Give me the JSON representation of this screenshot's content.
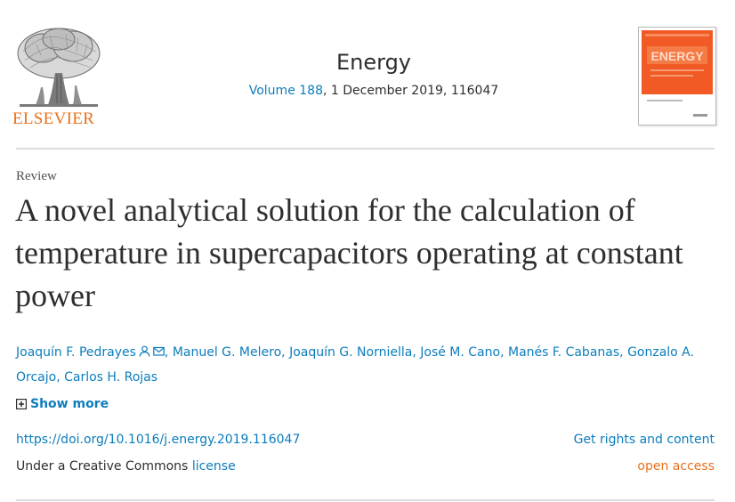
{
  "publisher": {
    "logo_text": "ELSEVIER",
    "brand_color": "#e9711c"
  },
  "journal": {
    "name": "Energy",
    "volume_link": "Volume 188",
    "issue_details": ", 1 December 2019, 116047",
    "cover_color": "#f15a24",
    "cover_wordmark": "ENERGY"
  },
  "article": {
    "type": "Review",
    "title": "A novel analytical solution for the calculation of temperature in supercapacitors operating at constant power",
    "authors": [
      "Joaquín F. Pedrayes",
      "Manuel G. Melero",
      "Joaquín G. Norniella",
      "José M. Cano",
      "Manés F. Cabanas",
      "Gonzalo A. Orcajo",
      "Carlos H. Rojas"
    ],
    "author_icons": [
      "person-icon",
      "envelope-icon"
    ],
    "show_more_label": "Show more",
    "show_more_icon": "plus-square-icon",
    "doi": "https://doi.org/10.1016/j.energy.2019.116047",
    "rights_link": "Get rights and content",
    "license_prefix": "Under a Creative Commons ",
    "license_link": "license",
    "access_label": "open access"
  },
  "colors": {
    "link": "#0c7dbb",
    "text": "#2e2e2e",
    "accent": "#e9711c",
    "divider": "#dcdcdc"
  }
}
